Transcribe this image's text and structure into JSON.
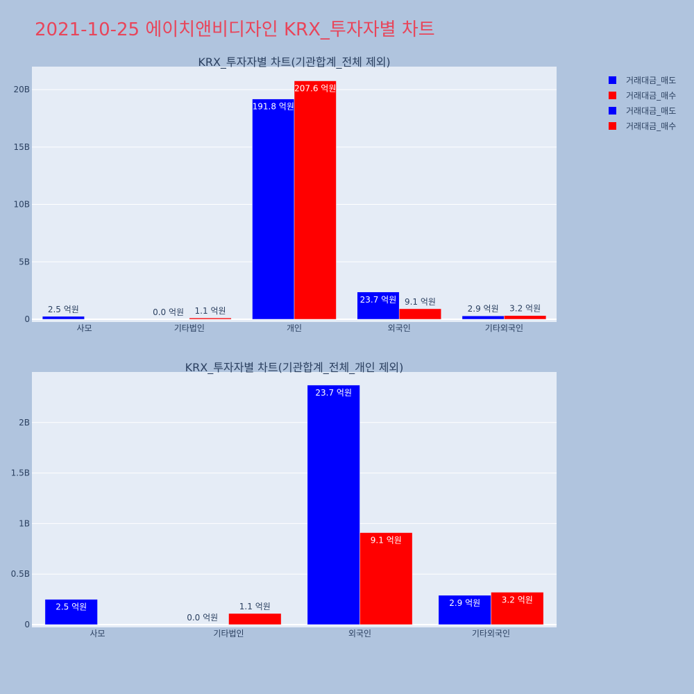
{
  "title": "2021-10-25 에이치앤비디자인 KRX_투자자별 차트",
  "legend": [
    {
      "label": "거래대금_매도",
      "color": "#0000ff"
    },
    {
      "label": "거래대금_매수",
      "color": "#ff0000"
    },
    {
      "label": "거래대금_매도",
      "color": "#0000ff"
    },
    {
      "label": "거래대금_매수",
      "color": "#ff0000"
    }
  ],
  "chart_data": [
    {
      "type": "bar",
      "title": "KRX_투자자별 차트(기관합계_전체 제외)",
      "categories": [
        "사모",
        "기타법인",
        "개인",
        "외국인",
        "기타외국인"
      ],
      "ylim": [
        0,
        22000000000
      ],
      "yticks": [
        0,
        5000000000,
        10000000000,
        15000000000,
        20000000000
      ],
      "ytick_labels": [
        "0",
        "5B",
        "10B",
        "15B",
        "20B"
      ],
      "grid": true,
      "series": [
        {
          "name": "거래대금_매도",
          "color": "#0000ff",
          "values": [
            250000000,
            0,
            19180000000,
            2370000000,
            290000000
          ],
          "labels": [
            "2.5 억원",
            "0.0 억원",
            "191.8 억원",
            "23.7 억원",
            "2.9 억원"
          ]
        },
        {
          "name": "거래대금_매수",
          "color": "#ff0000",
          "values": [
            0,
            110000000,
            20760000000,
            910000000,
            320000000
          ],
          "labels": [
            "",
            "1.1 억원",
            "207.6 억원",
            "9.1 억원",
            "3.2 억원"
          ]
        }
      ]
    },
    {
      "type": "bar",
      "title": "KRX_투자자별 차트(기관합계_전체_개인 제외)",
      "categories": [
        "사모",
        "기타법인",
        "외국인",
        "기타외국인"
      ],
      "ylim": [
        0,
        2500000000
      ],
      "yticks": [
        0,
        500000000,
        1000000000,
        1500000000,
        2000000000
      ],
      "ytick_labels": [
        "0",
        "0.5B",
        "1B",
        "1.5B",
        "2B"
      ],
      "grid": true,
      "series": [
        {
          "name": "거래대금_매도",
          "color": "#0000ff",
          "values": [
            250000000,
            0,
            2370000000,
            290000000
          ],
          "labels": [
            "2.5 억원",
            "0.0 억원",
            "23.7 억원",
            "2.9 억원"
          ]
        },
        {
          "name": "거래대금_매수",
          "color": "#ff0000",
          "values": [
            0,
            110000000,
            910000000,
            320000000
          ],
          "labels": [
            "",
            "1.1 억원",
            "9.1 억원",
            "3.2 억원"
          ]
        }
      ]
    }
  ]
}
